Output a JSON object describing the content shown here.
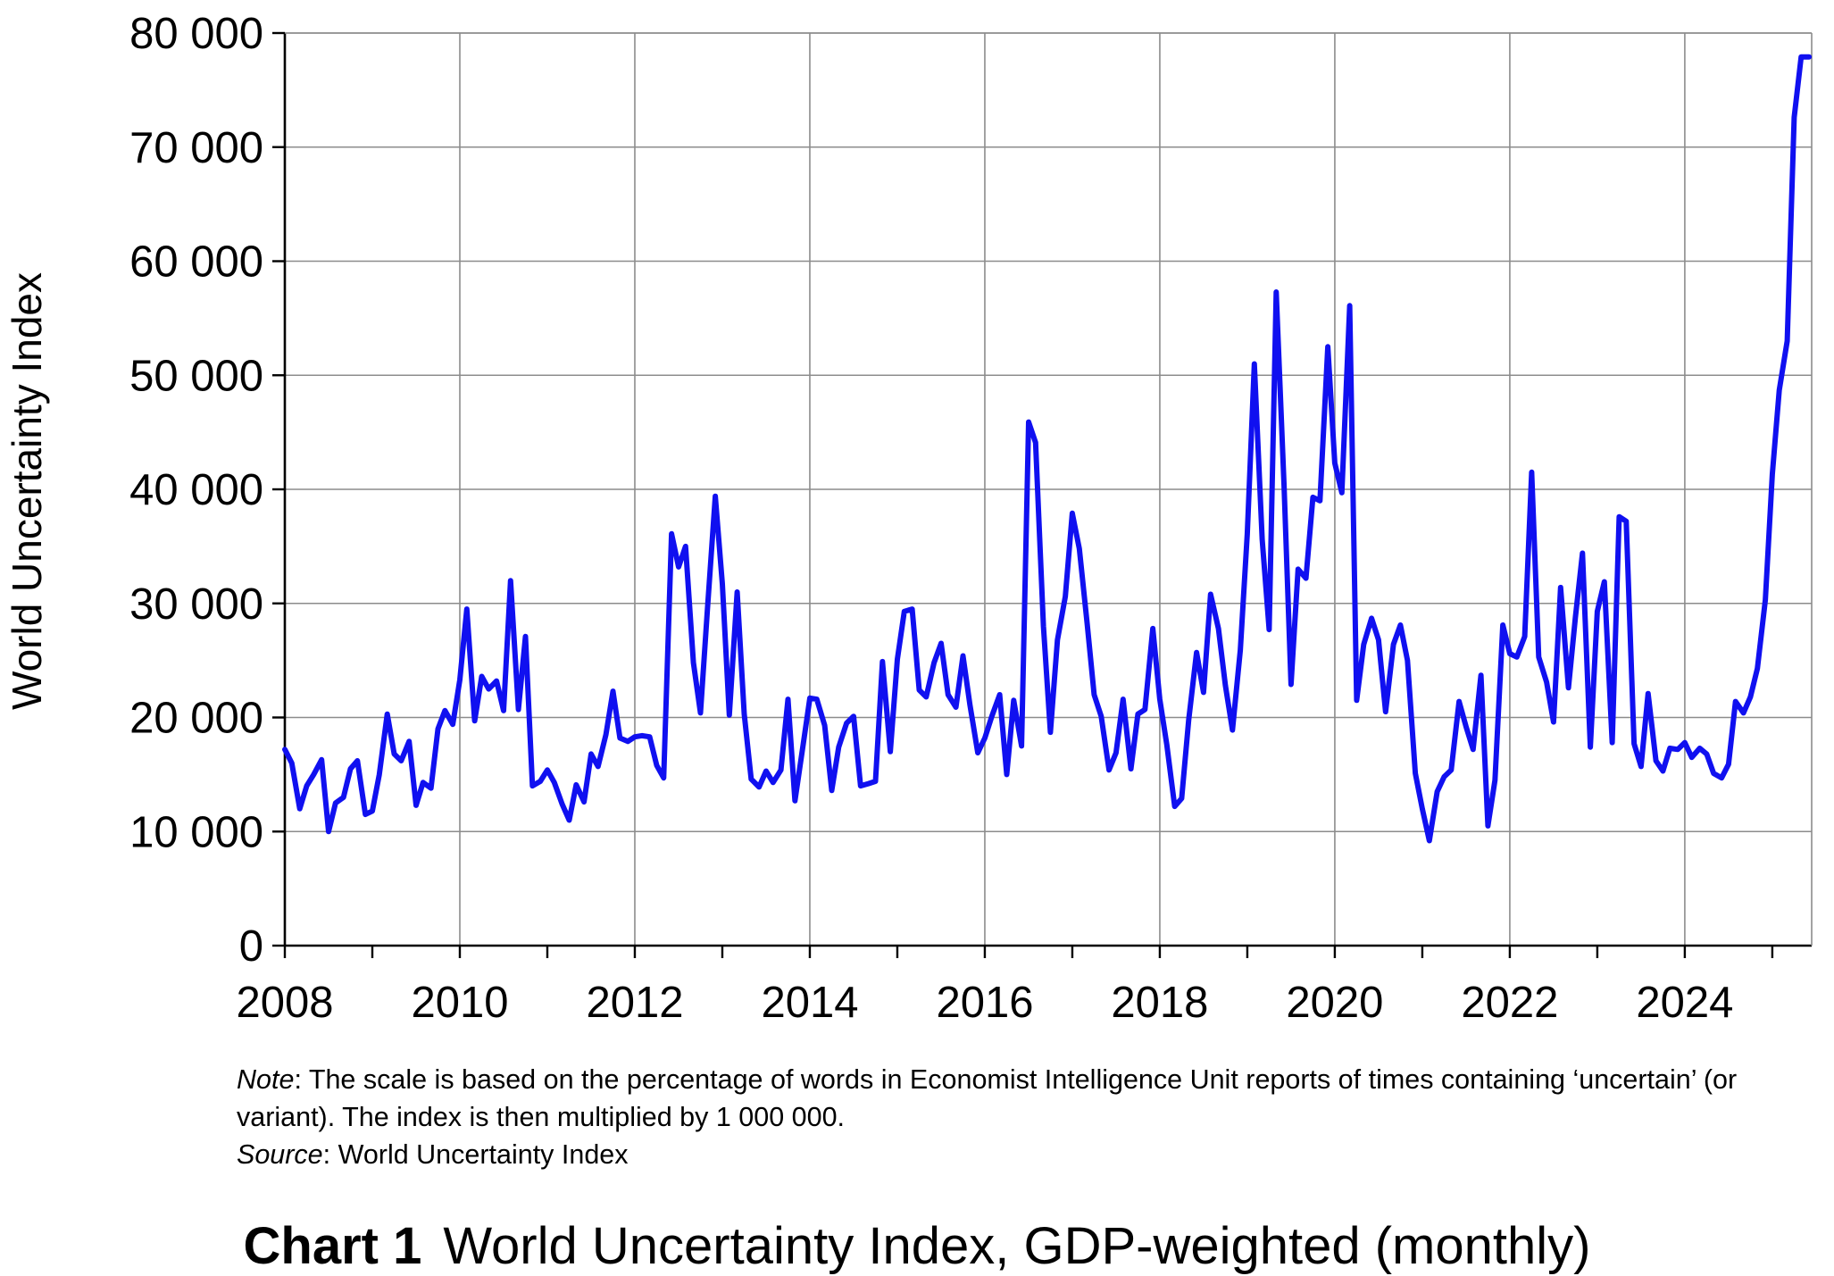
{
  "note": {
    "note_label": "Note",
    "note_text": ": The scale is based on the percentage of words in Economist Intelligence Unit reports of times containing ‘uncertain’ (or variant). The index is then multiplied by 1 000 000.",
    "source_label": "Source",
    "source_text": ": World Uncertainty Index"
  },
  "caption": {
    "number": "Chart 1",
    "text": "World Uncertainty Index, GDP-weighted (monthly)"
  },
  "chart_data": {
    "type": "line",
    "title": "World Uncertainty Index, GDP-weighted (monthly)",
    "xlabel": "",
    "ylabel": "World Uncertainty Index",
    "xlim": [
      2008,
      2025.45
    ],
    "ylim": [
      0,
      80000
    ],
    "x_ticks": [
      2008,
      2010,
      2012,
      2014,
      2016,
      2018,
      2020,
      2022,
      2024
    ],
    "x_tick_labels": [
      "2008",
      "2010",
      "2012",
      "2014",
      "2016",
      "2018",
      "2020",
      "2022",
      "2024"
    ],
    "y_ticks": [
      0,
      10000,
      20000,
      30000,
      40000,
      50000,
      60000,
      70000,
      80000
    ],
    "y_tick_labels": [
      "0",
      "10 000",
      "20 000",
      "30 000",
      "40 000",
      "50 000",
      "60 000",
      "70 000",
      "80 000"
    ],
    "grid": true,
    "legend": "none",
    "line_color": "#1010f0",
    "series": [
      {
        "x": [
          2008.0,
          2008.08,
          2008.17,
          2008.25,
          2008.33,
          2008.42,
          2008.5,
          2008.58,
          2008.67,
          2008.75,
          2008.83,
          2008.92,
          2009.0,
          2009.08,
          2009.17,
          2009.25,
          2009.33,
          2009.42,
          2009.5,
          2009.58,
          2009.67,
          2009.75,
          2009.83,
          2009.92,
          2010.0,
          2010.08,
          2010.17,
          2010.25,
          2010.33,
          2010.42,
          2010.5,
          2010.58,
          2010.67,
          2010.75,
          2010.83,
          2010.92,
          2011.0,
          2011.08,
          2011.17,
          2011.25,
          2011.33,
          2011.42,
          2011.5,
          2011.58,
          2011.67,
          2011.75,
          2011.83,
          2011.92,
          2012.0,
          2012.08,
          2012.17,
          2012.25,
          2012.33,
          2012.42,
          2012.5,
          2012.58,
          2012.67,
          2012.75,
          2012.83,
          2012.92,
          2013.0,
          2013.08,
          2013.17,
          2013.25,
          2013.33,
          2013.42,
          2013.5,
          2013.58,
          2013.67,
          2013.75,
          2013.83,
          2013.92,
          2014.0,
          2014.08,
          2014.17,
          2014.25,
          2014.33,
          2014.42,
          2014.5,
          2014.58,
          2014.67,
          2014.75,
          2014.83,
          2014.92,
          2015.0,
          2015.08,
          2015.17,
          2015.25,
          2015.33,
          2015.42,
          2015.5,
          2015.58,
          2015.67,
          2015.75,
          2015.83,
          2015.92,
          2016.0,
          2016.08,
          2016.17,
          2016.25,
          2016.33,
          2016.42,
          2016.5,
          2016.58,
          2016.67,
          2016.75,
          2016.83,
          2016.92,
          2017.0,
          2017.08,
          2017.17,
          2017.25,
          2017.33,
          2017.42,
          2017.5,
          2017.58,
          2017.67,
          2017.75,
          2017.83,
          2017.92,
          2018.0,
          2018.08,
          2018.17,
          2018.25,
          2018.33,
          2018.42,
          2018.5,
          2018.58,
          2018.67,
          2018.75,
          2018.83,
          2018.92,
          2019.0,
          2019.08,
          2019.17,
          2019.25,
          2019.33,
          2019.42,
          2019.5,
          2019.58,
          2019.67,
          2019.75,
          2019.83,
          2019.92,
          2020.0,
          2020.08,
          2020.17,
          2020.25,
          2020.33,
          2020.42,
          2020.5,
          2020.58,
          2020.67,
          2020.75,
          2020.83,
          2020.92,
          2021.0,
          2021.08,
          2021.17,
          2021.25,
          2021.33,
          2021.42,
          2021.5,
          2021.58,
          2021.67,
          2021.75,
          2021.83,
          2021.92,
          2022.0,
          2022.08,
          2022.17,
          2022.25,
          2022.33,
          2022.42,
          2022.5,
          2022.58,
          2022.67,
          2022.75,
          2022.83,
          2022.92,
          2023.0,
          2023.08,
          2023.17,
          2023.25,
          2023.33,
          2023.42,
          2023.5,
          2023.58,
          2023.67,
          2023.75,
          2023.83,
          2023.92,
          2024.0,
          2024.08,
          2024.17,
          2024.25,
          2024.33,
          2024.42,
          2024.5,
          2024.58,
          2024.67,
          2024.75,
          2024.83,
          2024.92,
          2025.0,
          2025.08,
          2025.17,
          2025.25,
          2025.33,
          2025.42
        ],
        "values": [
          17200,
          16000,
          12000,
          14000,
          15000,
          16300,
          10000,
          12500,
          13000,
          15500,
          16200,
          11500,
          11800,
          15000,
          20300,
          16800,
          16200,
          17900,
          12300,
          14300,
          13800,
          19000,
          20600,
          19400,
          23300,
          29500,
          19700,
          23600,
          22500,
          23200,
          20600,
          32000,
          20700,
          27100,
          14000,
          14400,
          15400,
          14300,
          12400,
          11000,
          14100,
          12600,
          16800,
          15700,
          18500,
          22300,
          18200,
          17900,
          18300,
          18400,
          18300,
          15800,
          14700,
          36100,
          33200,
          35000,
          24800,
          20400,
          29500,
          39400,
          31700,
          20200,
          31000,
          20300,
          14600,
          13900,
          15300,
          14300,
          15400,
          21600,
          12700,
          17400,
          21700,
          21600,
          19300,
          13600,
          17400,
          19500,
          20100,
          14000,
          14200,
          14400,
          24900,
          17000,
          25100,
          29300,
          29500,
          22400,
          21800,
          24800,
          26500,
          22000,
          20900,
          25400,
          21100,
          16900,
          18200,
          20100,
          22000,
          15000,
          21500,
          17500,
          45900,
          44100,
          28000,
          18700,
          26800,
          30600,
          37900,
          34800,
          28200,
          22000,
          20100,
          15400,
          16900,
          21600,
          15500,
          20300,
          20700,
          27800,
          21600,
          17600,
          12200,
          12900,
          19800,
          25700,
          22200,
          30800,
          27800,
          22800,
          18900,
          25900,
          36100,
          51000,
          35600,
          27700,
          57300,
          40300,
          22900,
          33000,
          32200,
          39300,
          39000,
          52500,
          42300,
          39700,
          56100,
          21500,
          26400,
          28700,
          26800,
          20500,
          26400,
          28100,
          25000,
          15100,
          12000,
          9200,
          13500,
          14800,
          15400,
          21400,
          19200,
          17200,
          23700,
          10500,
          14500,
          28100,
          25600,
          25300,
          27100,
          41500,
          25300,
          23100,
          19600,
          31400,
          22600,
          28800,
          34400,
          17400,
          29300,
          31900,
          17800,
          37600,
          37200,
          17700,
          15700,
          22100,
          16200,
          15300,
          17300,
          17200,
          17800,
          16500,
          17300,
          16800,
          15100,
          14700,
          15900,
          21400,
          20400,
          21800,
          24300,
          30300,
          41300,
          48700,
          53000,
          72600,
          77900,
          77900
        ]
      }
    ]
  }
}
